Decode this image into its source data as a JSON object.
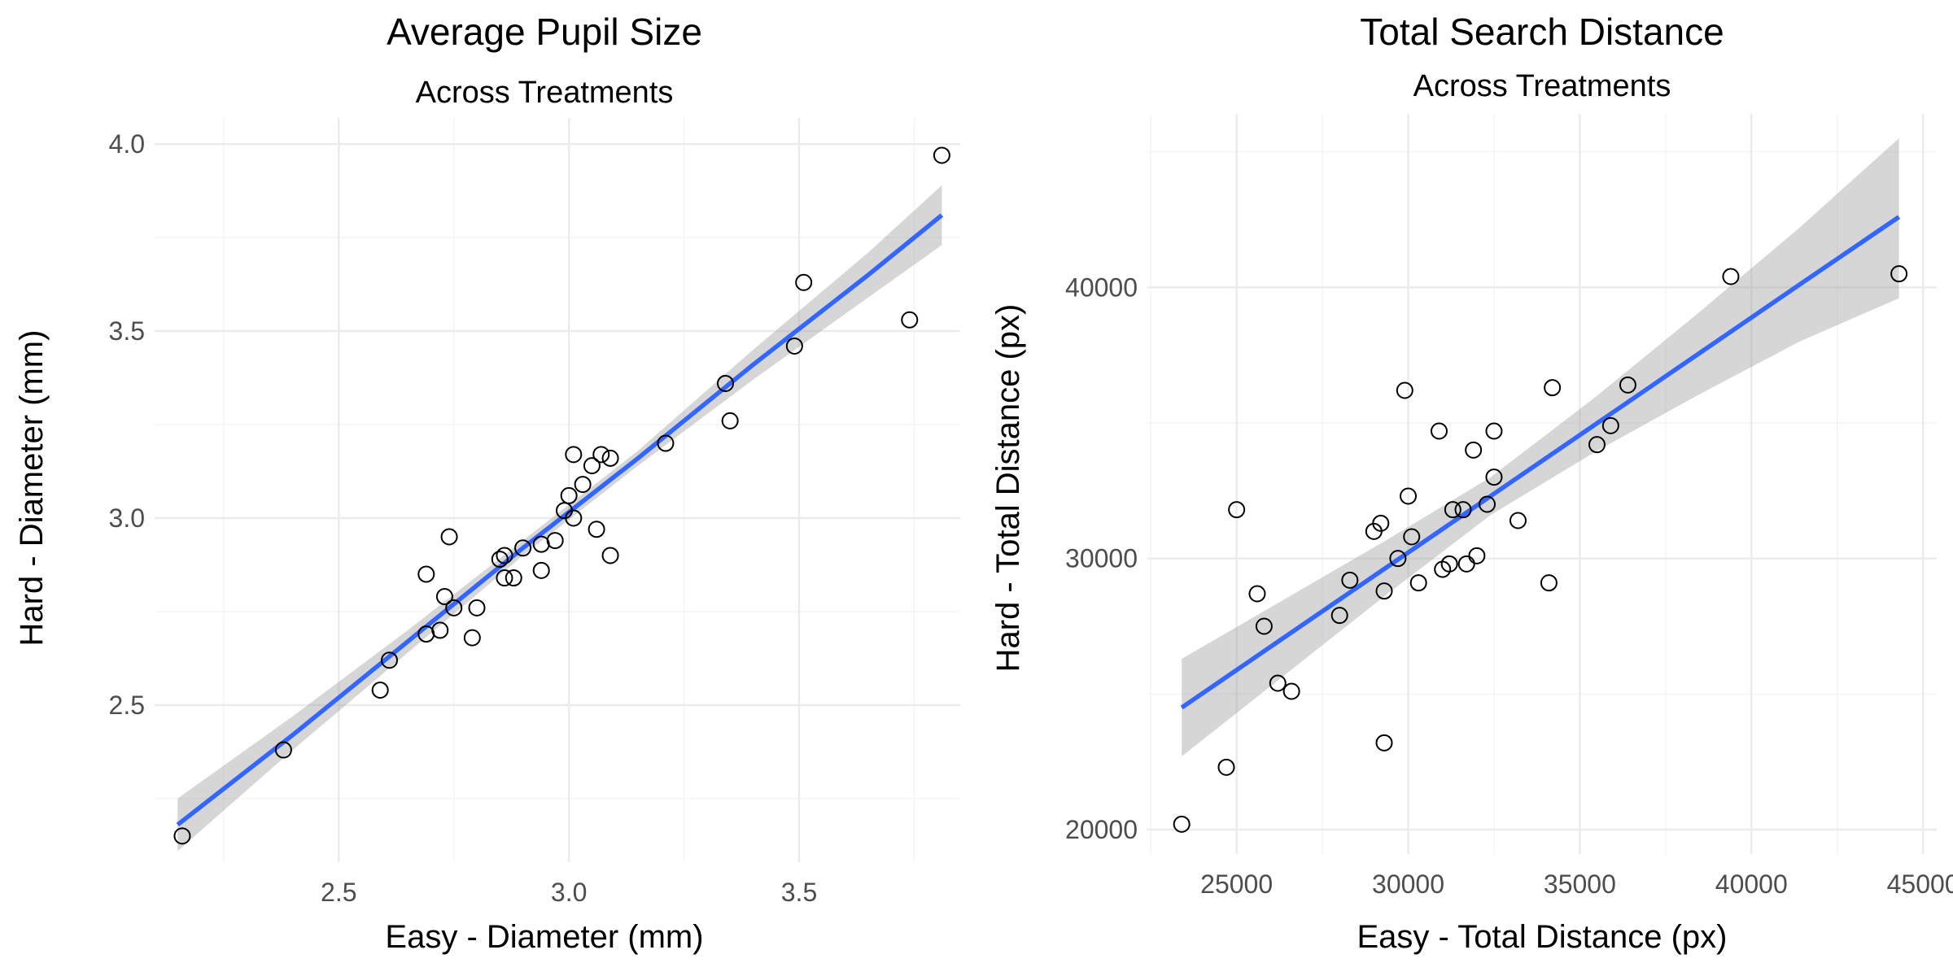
{
  "chart_data": [
    {
      "type": "scatter",
      "title": "Average Pupil Size",
      "subtitle": "Across Treatments",
      "xlabel": "Easy - Diameter (mm)",
      "ylabel": "Hard - Diameter (mm)",
      "xlim": [
        2.1,
        3.85
      ],
      "ylim": [
        2.08,
        4.07
      ],
      "x_ticks": [
        2.5,
        3.0,
        3.5
      ],
      "x_tick_labels": [
        "2.5",
        "3.0",
        "3.5"
      ],
      "y_ticks": [
        2.5,
        3.0,
        3.5,
        4.0
      ],
      "y_tick_labels": [
        "2.5",
        "3.0",
        "3.5",
        "4.0"
      ],
      "grid": true,
      "points": [
        [
          2.16,
          2.15
        ],
        [
          2.38,
          2.38
        ],
        [
          2.59,
          2.54
        ],
        [
          2.61,
          2.62
        ],
        [
          2.69,
          2.69
        ],
        [
          2.69,
          2.85
        ],
        [
          2.72,
          2.7
        ],
        [
          2.73,
          2.79
        ],
        [
          2.74,
          2.95
        ],
        [
          2.75,
          2.76
        ],
        [
          2.79,
          2.68
        ],
        [
          2.8,
          2.76
        ],
        [
          2.85,
          2.89
        ],
        [
          2.86,
          2.9
        ],
        [
          2.86,
          2.84
        ],
        [
          2.88,
          2.84
        ],
        [
          2.9,
          2.92
        ],
        [
          2.94,
          2.93
        ],
        [
          2.94,
          2.86
        ],
        [
          2.97,
          2.94
        ],
        [
          2.99,
          3.02
        ],
        [
          3.0,
          3.06
        ],
        [
          3.01,
          3.17
        ],
        [
          3.01,
          3.0
        ],
        [
          3.03,
          3.09
        ],
        [
          3.05,
          3.14
        ],
        [
          3.06,
          2.97
        ],
        [
          3.07,
          3.17
        ],
        [
          3.09,
          2.9
        ],
        [
          3.09,
          3.16
        ],
        [
          3.21,
          3.2
        ],
        [
          3.34,
          3.36
        ],
        [
          3.35,
          3.26
        ],
        [
          3.49,
          3.46
        ],
        [
          3.51,
          3.63
        ],
        [
          3.74,
          3.53
        ],
        [
          3.81,
          3.97
        ]
      ],
      "fit": {
        "x": [
          2.15,
          2.4,
          2.65,
          2.9,
          3.15,
          3.4,
          3.65,
          3.81
        ],
        "y": [
          2.18,
          2.42,
          2.67,
          2.92,
          3.16,
          3.41,
          3.65,
          3.81
        ],
        "lower": [
          2.11,
          2.38,
          2.64,
          2.9,
          3.14,
          3.37,
          3.59,
          3.73
        ],
        "upper": [
          2.25,
          2.47,
          2.7,
          2.94,
          3.18,
          3.45,
          3.71,
          3.89
        ]
      },
      "colors": {
        "fit_line": "#3366ff",
        "band": "#999999",
        "points": "#000000"
      }
    },
    {
      "type": "scatter",
      "title": "Total Search Distance",
      "subtitle": "Across Treatments",
      "xlabel": "Easy - Total Distance (px)",
      "ylabel": "Hard - Total Distance (px)",
      "xlim": [
        22400,
        45400
      ],
      "ylim": [
        19100,
        46400
      ],
      "x_ticks": [
        25000,
        30000,
        35000,
        40000,
        45000
      ],
      "x_tick_labels": [
        "25000",
        "30000",
        "35000",
        "40000",
        "45000"
      ],
      "y_ticks": [
        20000,
        30000,
        40000
      ],
      "y_tick_labels": [
        "20000",
        "30000",
        "40000"
      ],
      "grid": true,
      "points": [
        [
          23400,
          20200
        ],
        [
          24700,
          22300
        ],
        [
          25000,
          31800
        ],
        [
          25600,
          28700
        ],
        [
          25800,
          27500
        ],
        [
          26200,
          25400
        ],
        [
          26600,
          25100
        ],
        [
          28000,
          27900
        ],
        [
          28300,
          29200
        ],
        [
          29000,
          31000
        ],
        [
          29200,
          31300
        ],
        [
          29300,
          28800
        ],
        [
          29300,
          23200
        ],
        [
          29700,
          30000
        ],
        [
          29900,
          36200
        ],
        [
          30000,
          32300
        ],
        [
          30100,
          30800
        ],
        [
          30300,
          29100
        ],
        [
          30900,
          34700
        ],
        [
          31000,
          29600
        ],
        [
          31200,
          29800
        ],
        [
          31300,
          31800
        ],
        [
          31600,
          31800
        ],
        [
          31700,
          29800
        ],
        [
          31900,
          34000
        ],
        [
          32000,
          30100
        ],
        [
          32300,
          32000
        ],
        [
          32500,
          33000
        ],
        [
          32500,
          34700
        ],
        [
          33200,
          31400
        ],
        [
          34100,
          29100
        ],
        [
          34200,
          36300
        ],
        [
          35500,
          34200
        ],
        [
          35900,
          34900
        ],
        [
          36400,
          36400
        ],
        [
          39400,
          40400
        ],
        [
          44300,
          40500
        ]
      ],
      "fit": {
        "x": [
          23400,
          26400,
          29400,
          32400,
          35400,
          38400,
          41400,
          44300
        ],
        "y": [
          24500,
          27100,
          29700,
          32300,
          34900,
          37500,
          40100,
          42600
        ],
        "lower": [
          22700,
          25700,
          28700,
          31600,
          33900,
          36000,
          38000,
          39600
        ],
        "upper": [
          26300,
          28500,
          30700,
          33000,
          35900,
          39000,
          42200,
          45500
        ]
      },
      "colors": {
        "fit_line": "#3366ff",
        "band": "#999999",
        "points": "#000000"
      }
    }
  ]
}
